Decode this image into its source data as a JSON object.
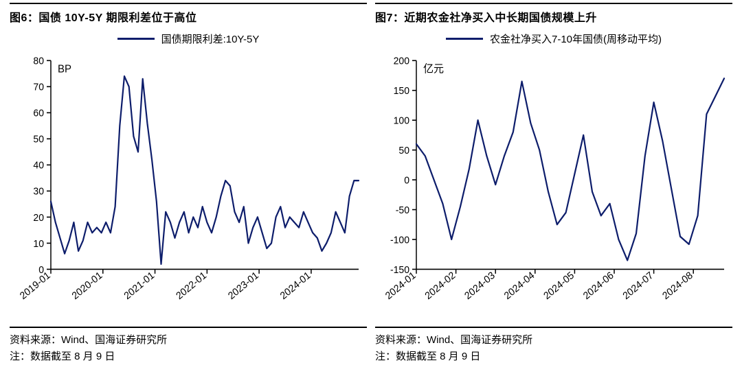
{
  "left": {
    "title": "图6：国债 10Y-5Y 期限利差位于高位",
    "legend_label": "国债期限利差:10Y-5Y",
    "unit_label": "BP",
    "source": "资料来源：Wind、国海证券研究所",
    "note": "注：数据截至 8 月 9 日",
    "chart": {
      "type": "line",
      "line_color": "#0d1d6b",
      "line_width": 2.2,
      "background_color": "#ffffff",
      "axis_color": "#000000",
      "font_color": "#000000",
      "tick_fontsize": 14,
      "legend_fontsize": 15,
      "ylim": [
        0,
        80
      ],
      "ytick_step": 10,
      "x_categories": [
        "2019-01",
        "2020-01",
        "2021-01",
        "2022-01",
        "2023-01",
        "2024-01"
      ],
      "x_extent": 68,
      "series": [
        26,
        18,
        12,
        6,
        11,
        18,
        7,
        11,
        18,
        14,
        16,
        14,
        18,
        14,
        24,
        55,
        74,
        70,
        51,
        45,
        73,
        56,
        42,
        26,
        2,
        22,
        18,
        12,
        18,
        22,
        14,
        20,
        16,
        24,
        18,
        14,
        20,
        28,
        34,
        32,
        22,
        18,
        24,
        10,
        16,
        20,
        14,
        8,
        10,
        20,
        24,
        16,
        20,
        18,
        16,
        22,
        18,
        14,
        12,
        7,
        10,
        14,
        22,
        18,
        14,
        28,
        34,
        34
      ]
    }
  },
  "right": {
    "title": "图7：近期农金社净买入中长期国债规模上升",
    "legend_label": "农金社净买入7-10年国债(周移动平均)",
    "unit_label": "亿元",
    "source": "资料来源：Wind、国海证券研究所",
    "note": "注：数据截至 8 月 9 日",
    "chart": {
      "type": "line",
      "line_color": "#0d1d6b",
      "line_width": 2.2,
      "background_color": "#ffffff",
      "axis_color": "#000000",
      "font_color": "#000000",
      "tick_fontsize": 14,
      "legend_fontsize": 15,
      "ylim": [
        -150,
        200
      ],
      "ytick_step": 50,
      "x_categories": [
        "2024-01",
        "2024-02",
        "2024-03",
        "2024-04",
        "2024-05",
        "2024-06",
        "2024-07",
        "2024-08"
      ],
      "x_extent": 36,
      "series": [
        60,
        40,
        0,
        -40,
        -100,
        -45,
        18,
        100,
        40,
        -8,
        40,
        80,
        165,
        95,
        50,
        -20,
        -75,
        -55,
        10,
        75,
        -20,
        -60,
        -40,
        -100,
        -135,
        -90,
        40,
        130,
        65,
        -15,
        -95,
        -108,
        -60,
        110,
        140,
        170
      ]
    }
  }
}
